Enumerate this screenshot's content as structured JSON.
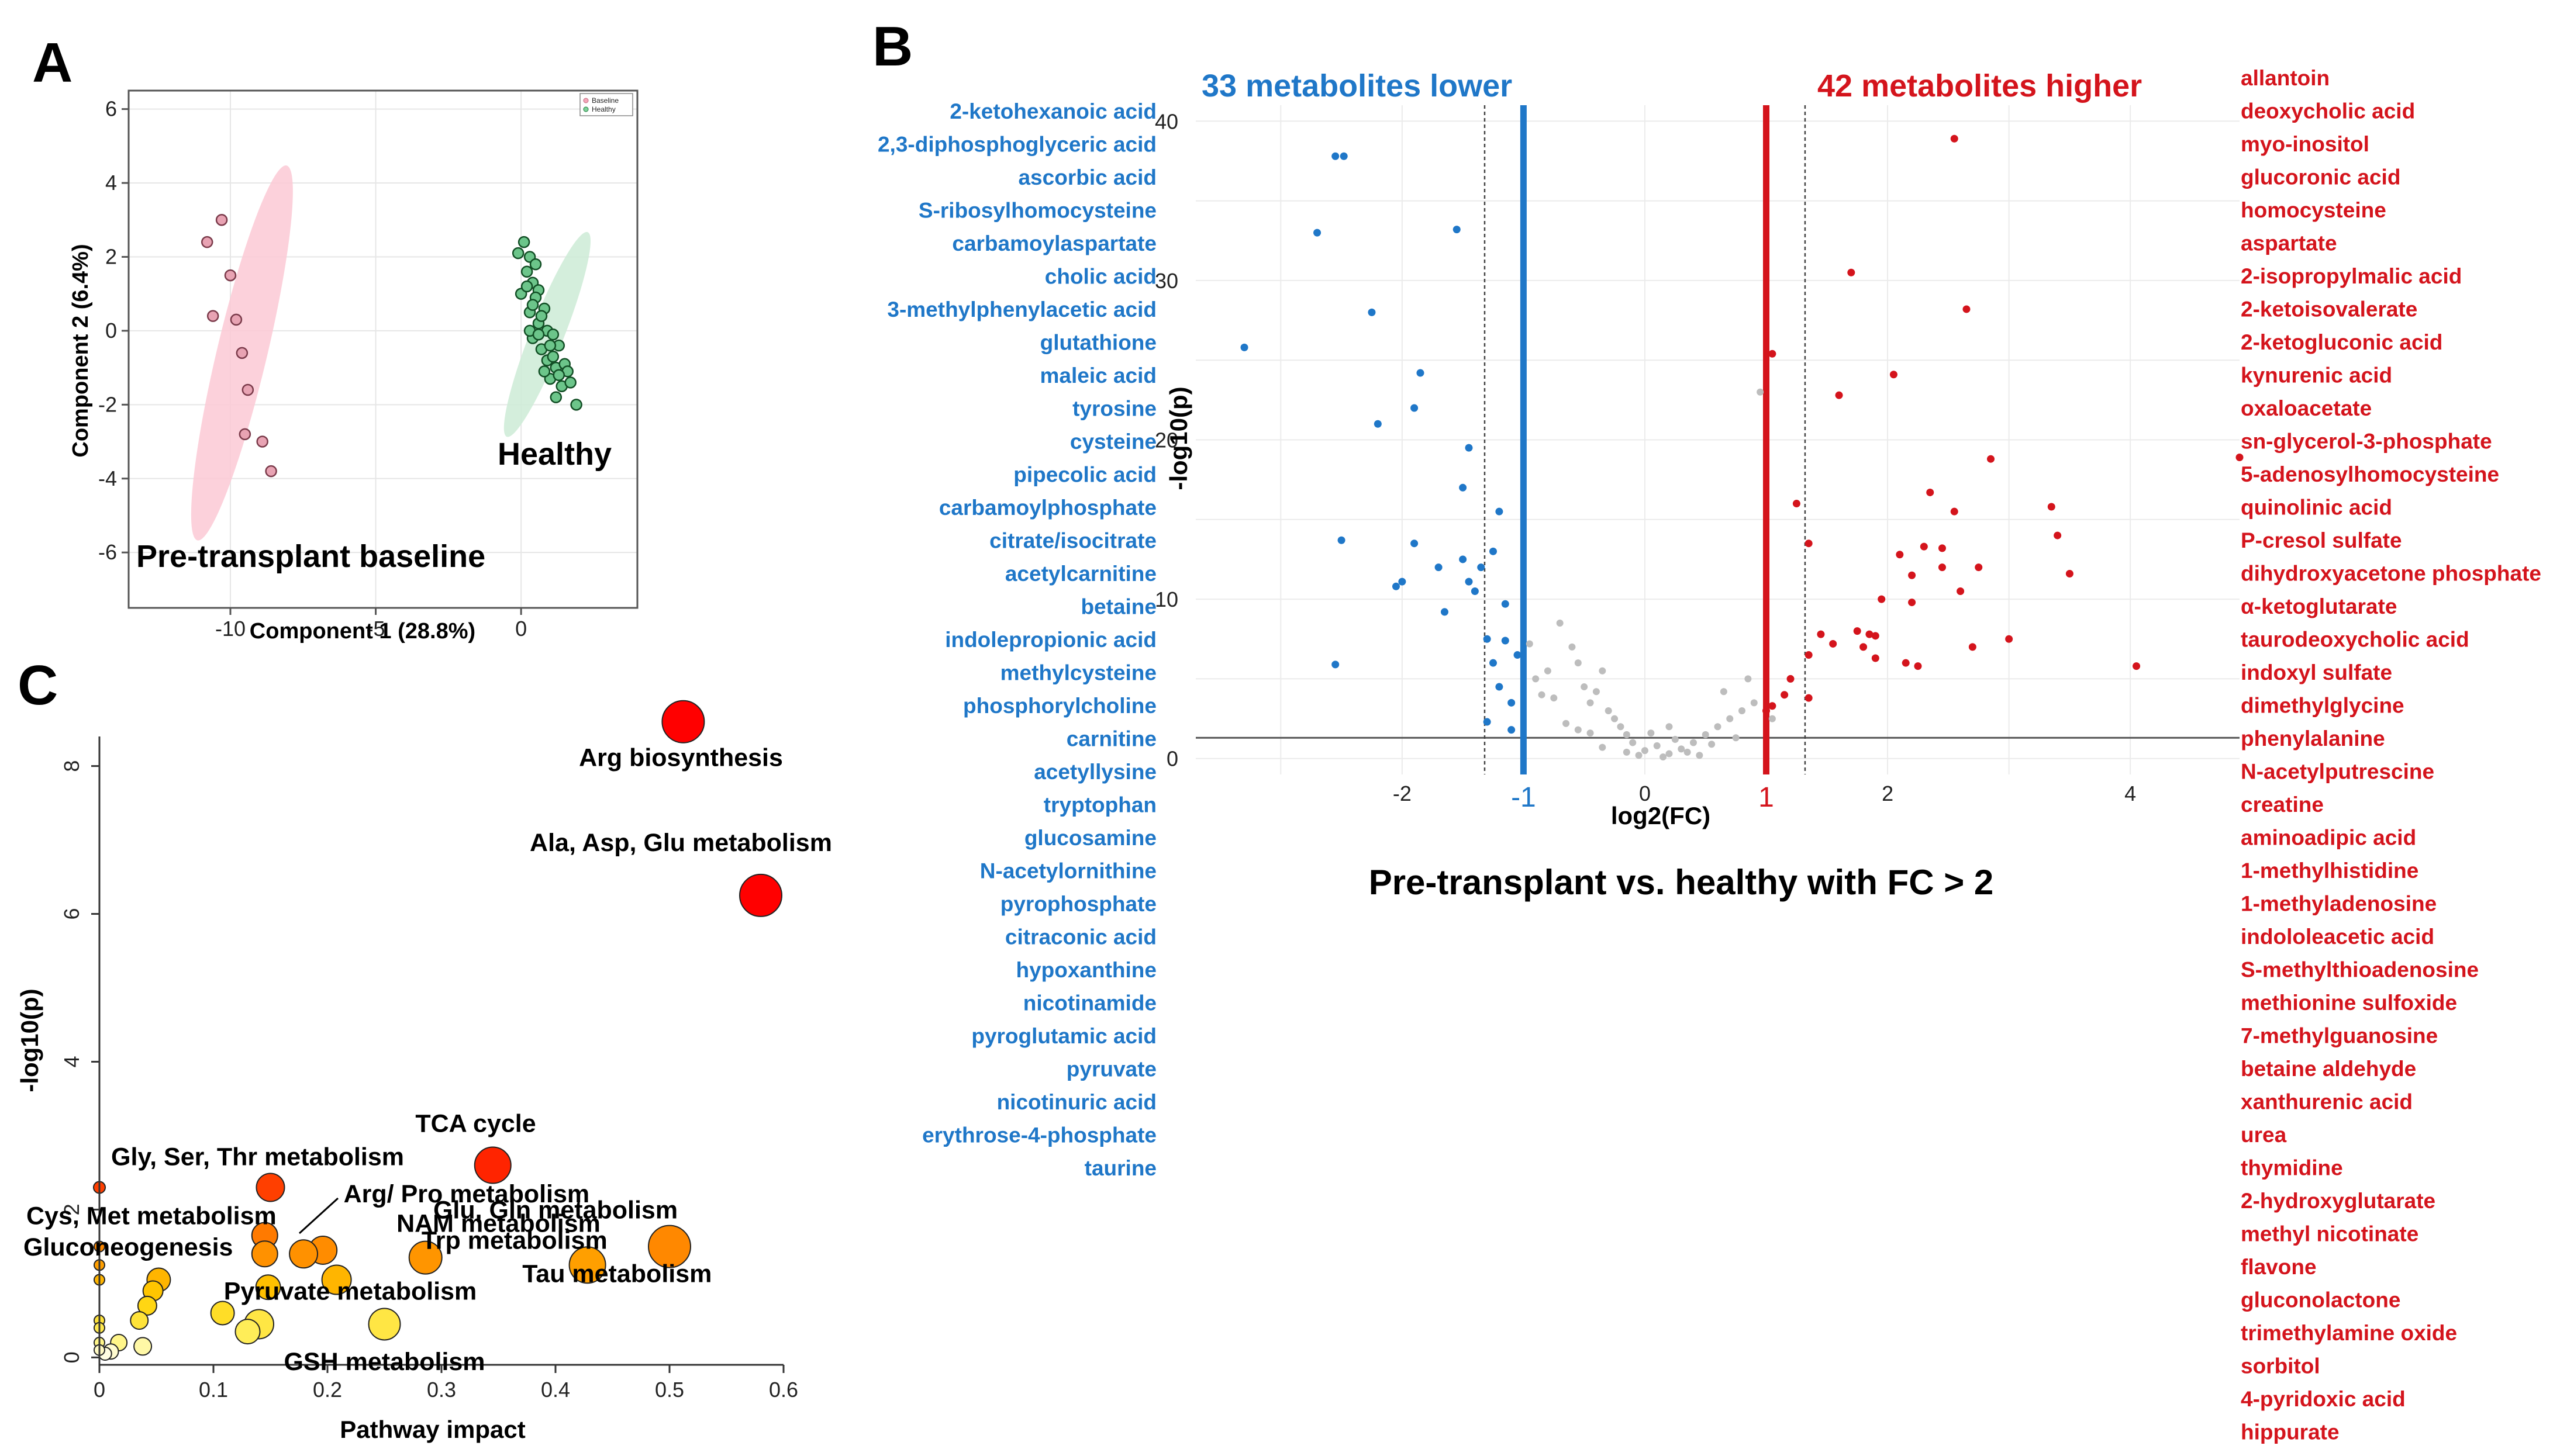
{
  "panels": {
    "A": "A",
    "B": "B",
    "C": "C"
  },
  "chart_data": [
    {
      "id": "A",
      "type": "scatter",
      "title": "",
      "xlabel": "Component 1 (28.8%)",
      "ylabel": "Component 2 (6.4%)",
      "xlim": [
        -13.5,
        4
      ],
      "ylim": [
        -7.5,
        6.5
      ],
      "xticks": [
        -10,
        -5,
        0
      ],
      "yticks": [
        -6,
        -4,
        -2,
        0,
        2,
        4,
        6
      ],
      "legend": {
        "position": "top-right",
        "entries": [
          "Baseline",
          "Healthy"
        ]
      },
      "colors": {
        "baseline": "#f4a6b8",
        "baseline_fill": "#fcc9d5",
        "healthy": "#1e7a3b",
        "healthy_fill": "#cdebd6"
      },
      "annotations": {
        "baseline": "Pre-transplant baseline",
        "healthy": "Healthy"
      },
      "series": [
        {
          "name": "Baseline",
          "points": [
            [
              -10.3,
              3.0
            ],
            [
              -10.8,
              2.4
            ],
            [
              -10.0,
              1.5
            ],
            [
              -10.6,
              0.4
            ],
            [
              -9.8,
              0.3
            ],
            [
              -9.6,
              -0.6
            ],
            [
              -9.4,
              -1.6
            ],
            [
              -9.5,
              -2.8
            ],
            [
              -8.9,
              -3.0
            ],
            [
              -8.6,
              -3.8
            ]
          ],
          "ellipse": {
            "center": [
              -9.6,
              -0.6
            ],
            "rx": 5.3,
            "ry": 0.85,
            "angle_deg": -73
          }
        },
        {
          "name": "Healthy",
          "points": [
            [
              -0.1,
              2.1
            ],
            [
              0.1,
              2.4
            ],
            [
              0.3,
              2.0
            ],
            [
              0.2,
              1.6
            ],
            [
              0.5,
              1.8
            ],
            [
              0.4,
              1.3
            ],
            [
              0.0,
              1.0
            ],
            [
              0.6,
              1.1
            ],
            [
              0.8,
              0.6
            ],
            [
              0.3,
              0.5
            ],
            [
              0.6,
              0.2
            ],
            [
              0.9,
              0.0
            ],
            [
              0.4,
              -0.2
            ],
            [
              1.1,
              -0.1
            ],
            [
              0.7,
              -0.5
            ],
            [
              1.3,
              -0.4
            ],
            [
              0.9,
              -0.8
            ],
            [
              1.2,
              -1.0
            ],
            [
              1.5,
              -0.9
            ],
            [
              1.0,
              -1.3
            ],
            [
              1.4,
              -1.5
            ],
            [
              1.7,
              -1.4
            ],
            [
              1.2,
              -1.8
            ],
            [
              1.9,
              -2.0
            ],
            [
              0.5,
              0.9
            ],
            [
              0.2,
              1.2
            ],
            [
              0.7,
              0.4
            ],
            [
              1.0,
              -0.4
            ],
            [
              1.6,
              -1.1
            ],
            [
              0.8,
              -1.1
            ],
            [
              0.3,
              0.0
            ],
            [
              1.3,
              -1.2
            ],
            [
              0.6,
              -0.1
            ],
            [
              1.1,
              -0.7
            ],
            [
              0.4,
              0.7
            ]
          ],
          "ellipse": {
            "center": [
              0.9,
              -0.1
            ],
            "rx": 3.1,
            "ry": 0.55,
            "angle_deg": -63
          }
        }
      ]
    },
    {
      "id": "B",
      "type": "scatter",
      "title": "Pre-transplant vs. healthy with FC > 2",
      "xlabel": "log2(FC)",
      "ylabel": "-log10(p)",
      "xlim": [
        -3.7,
        4.9
      ],
      "ylim": [
        -1,
        41
      ],
      "xticks": [
        -2,
        0,
        2,
        4
      ],
      "yticks": [
        0,
        10,
        20,
        30,
        40
      ],
      "thresholds": {
        "fc_lines": [
          -1,
          1
        ],
        "fc_labels": [
          "-1",
          "1"
        ],
        "dashed_x": [
          -1.32,
          1.32
        ],
        "p_line": 1.3
      },
      "colors": {
        "lower": "#1f77c8",
        "higher": "#d4141c",
        "ns": "#bdbdbd"
      },
      "header_lower": "33 metabolites lower",
      "header_higher": "42 metabolites higher",
      "lower_points": [
        [
          -3.3,
          25.8
        ],
        [
          -2.7,
          33.0
        ],
        [
          -2.55,
          37.8
        ],
        [
          -2.48,
          37.8
        ],
        [
          -2.25,
          28.0
        ],
        [
          -2.2,
          21.0
        ],
        [
          -1.9,
          22.0
        ],
        [
          -1.85,
          24.2
        ],
        [
          -1.55,
          33.2
        ],
        [
          -1.5,
          17.0
        ],
        [
          -1.45,
          19.5
        ],
        [
          -1.2,
          15.5
        ],
        [
          -2.5,
          13.7
        ],
        [
          -1.9,
          13.5
        ],
        [
          -1.7,
          12.0
        ],
        [
          -1.5,
          12.5
        ],
        [
          -1.35,
          12.0
        ],
        [
          -1.25,
          13.0
        ],
        [
          -2.05,
          10.8
        ],
        [
          -2.0,
          11.1
        ],
        [
          -1.65,
          9.2
        ],
        [
          -1.4,
          10.5
        ],
        [
          -1.15,
          9.7
        ],
        [
          -1.3,
          7.5
        ],
        [
          -1.15,
          7.4
        ],
        [
          -1.05,
          6.5
        ],
        [
          -1.25,
          6.0
        ],
        [
          -1.2,
          4.5
        ],
        [
          -1.1,
          3.5
        ],
        [
          -1.3,
          2.3
        ],
        [
          -1.1,
          1.8
        ],
        [
          -2.55,
          5.9
        ],
        [
          -1.45,
          11.1
        ]
      ],
      "higher_points": [
        [
          2.55,
          38.9
        ],
        [
          1.7,
          30.5
        ],
        [
          2.65,
          28.2
        ],
        [
          1.05,
          25.4
        ],
        [
          2.05,
          24.1
        ],
        [
          1.6,
          22.8
        ],
        [
          2.85,
          18.8
        ],
        [
          4.9,
          18.9
        ],
        [
          1.25,
          16.0
        ],
        [
          2.35,
          16.7
        ],
        [
          2.55,
          15.5
        ],
        [
          3.35,
          15.8
        ],
        [
          1.35,
          13.5
        ],
        [
          2.3,
          13.3
        ],
        [
          2.1,
          12.8
        ],
        [
          2.45,
          13.2
        ],
        [
          3.4,
          14.0
        ],
        [
          2.2,
          11.5
        ],
        [
          2.45,
          12.0
        ],
        [
          2.75,
          12.0
        ],
        [
          3.5,
          11.6
        ],
        [
          1.95,
          10.0
        ],
        [
          2.2,
          9.8
        ],
        [
          2.6,
          10.5
        ],
        [
          1.75,
          8.0
        ],
        [
          1.85,
          7.8
        ],
        [
          2.7,
          7.0
        ],
        [
          3.0,
          7.5
        ],
        [
          1.45,
          7.8
        ],
        [
          1.55,
          7.2
        ],
        [
          1.35,
          6.5
        ],
        [
          1.8,
          7.0
        ],
        [
          1.9,
          6.3
        ],
        [
          2.15,
          6.0
        ],
        [
          2.25,
          5.8
        ],
        [
          4.05,
          5.8
        ],
        [
          1.2,
          5.0
        ],
        [
          1.15,
          4.0
        ],
        [
          1.05,
          3.3
        ],
        [
          1.35,
          3.8
        ],
        [
          1.0,
          3.0
        ],
        [
          1.9,
          7.7
        ]
      ],
      "ns_points": [
        [
          -0.9,
          5.0
        ],
        [
          -0.8,
          5.5
        ],
        [
          -0.7,
          8.5
        ],
        [
          -0.6,
          7.0
        ],
        [
          -0.55,
          6.0
        ],
        [
          -0.5,
          4.5
        ],
        [
          -0.45,
          3.5
        ],
        [
          -0.4,
          4.2
        ],
        [
          -0.35,
          5.5
        ],
        [
          -0.3,
          3.0
        ],
        [
          -0.25,
          2.5
        ],
        [
          -0.2,
          2.0
        ],
        [
          -0.15,
          1.5
        ],
        [
          -0.1,
          1.0
        ],
        [
          0.0,
          0.5
        ],
        [
          0.1,
          0.8
        ],
        [
          0.2,
          0.3
        ],
        [
          0.3,
          0.6
        ],
        [
          0.4,
          1.0
        ],
        [
          0.5,
          1.5
        ],
        [
          0.6,
          2.0
        ],
        [
          0.7,
          2.5
        ],
        [
          0.8,
          3.0
        ],
        [
          0.9,
          3.5
        ],
        [
          0.95,
          23.0
        ],
        [
          -0.75,
          3.8
        ],
        [
          -0.65,
          2.2
        ],
        [
          -0.55,
          1.8
        ],
        [
          -0.05,
          0.2
        ],
        [
          0.15,
          0.1
        ],
        [
          0.35,
          0.4
        ],
        [
          0.55,
          0.9
        ],
        [
          0.75,
          1.3
        ],
        [
          0.45,
          0.2
        ],
        [
          -0.35,
          0.7
        ],
        [
          -0.95,
          7.2
        ],
        [
          0.85,
          5.0
        ],
        [
          0.25,
          1.2
        ],
        [
          -0.85,
          4.0
        ],
        [
          0.65,
          4.2
        ],
        [
          1.05,
          2.5
        ],
        [
          -0.45,
          1.6
        ],
        [
          -0.15,
          0.4
        ],
        [
          0.05,
          1.6
        ],
        [
          0.2,
          2.0
        ]
      ],
      "lower_names": [
        "2-ketohexanoic acid",
        "2,3-diphosphoglyceric acid",
        "ascorbic acid",
        "S-ribosylhomocysteine",
        "carbamoylaspartate",
        "cholic acid",
        "3-methylphenylacetic acid",
        "glutathione",
        "maleic acid",
        "tyrosine",
        "cysteine",
        "pipecolic acid",
        "carbamoylphosphate",
        "citrate/isocitrate",
        "acetylcarnitine",
        "betaine",
        "indolepropionic acid",
        "methylcysteine",
        "phosphorylcholine",
        "carnitine",
        "acetyllysine",
        "tryptophan",
        "glucosamine",
        "N-acetylornithine",
        "pyrophosphate",
        "citraconic acid",
        "hypoxanthine",
        "nicotinamide",
        "pyroglutamic acid",
        "pyruvate",
        "nicotinuric acid",
        "erythrose-4-phosphate",
        "taurine"
      ],
      "higher_names": [
        "allantoin",
        "deoxycholic acid",
        "myo-inositol",
        "glucoronic acid",
        "homocysteine",
        "aspartate",
        "2-isopropylmalic acid",
        "2-ketoisovalerate",
        "2-ketogluconic acid",
        "kynurenic acid",
        "oxaloacetate",
        "sn-glycerol-3-phosphate",
        "5-adenosylhomocysteine",
        "quinolinic acid",
        "P-cresol sulfate",
        "dihydroxyacetone phosphate",
        "α-ketoglutarate",
        "taurodeoxycholic acid",
        "indoxyl sulfate",
        "dimethylglycine",
        "phenylalanine",
        "N-acetylputrescine",
        "creatine",
        "aminoadipic acid",
        "1-methylhistidine",
        "1-methyladenosine",
        "indololeacetic acid",
        "S-methylthioadenosine",
        "methionine sulfoxide",
        "7-methylguanosine",
        "betaine aldehyde",
        "xanthurenic acid",
        "urea",
        "thymidine",
        "2-hydroxyglutarate",
        "methyl nicotinate",
        "flavone",
        "gluconolactone",
        "trimethylamine oxide",
        "sorbitol",
        "4-pyridoxic acid",
        "hippurate"
      ]
    },
    {
      "id": "C",
      "type": "scatter",
      "title": "",
      "xlabel": "Pathway impact",
      "ylabel": "-log10(p)",
      "xlim": [
        0,
        0.6
      ],
      "ylim": [
        -0.1,
        8.4
      ],
      "xticks": [
        0,
        0.1,
        0.2,
        0.3,
        0.4,
        0.5,
        0.6
      ],
      "xtick_labels": [
        "0",
        "0.1",
        "0.2",
        "0.3",
        "0.4",
        "0.5",
        "0.6"
      ],
      "yticks": [
        0,
        2,
        4,
        6,
        8
      ],
      "ytick_labels": [
        "0",
        "2",
        "4",
        "6",
        "8"
      ],
      "color_scale": [
        "#ffffff",
        "#fff36b",
        "#ffd000",
        "#ff9a00",
        "#ff5a00",
        "#ff0000"
      ],
      "points": [
        {
          "x": 0.512,
          "y": 8.6,
          "size": 36
        },
        {
          "x": 0.58,
          "y": 6.25,
          "size": 36
        },
        {
          "x": 0.345,
          "y": 2.6,
          "size": 31
        },
        {
          "x": 0.15,
          "y": 2.3,
          "size": 24
        },
        {
          "x": 0.5,
          "y": 1.5,
          "size": 36
        },
        {
          "x": 0.428,
          "y": 1.25,
          "size": 31
        },
        {
          "x": 0.286,
          "y": 1.35,
          "size": 28
        },
        {
          "x": 0.196,
          "y": 1.45,
          "size": 24
        },
        {
          "x": 0.179,
          "y": 1.4,
          "size": 24
        },
        {
          "x": 0.145,
          "y": 1.65,
          "size": 22
        },
        {
          "x": 0.145,
          "y": 1.4,
          "size": 22
        },
        {
          "x": 0.208,
          "y": 1.05,
          "size": 25
        },
        {
          "x": 0.148,
          "y": 0.95,
          "size": 21
        },
        {
          "x": 0.25,
          "y": 0.45,
          "size": 27
        },
        {
          "x": 0.14,
          "y": 0.45,
          "size": 25
        },
        {
          "x": 0.13,
          "y": 0.35,
          "size": 21
        },
        {
          "x": 0.108,
          "y": 0.6,
          "size": 20
        },
        {
          "x": 0.052,
          "y": 1.05,
          "size": 20
        },
        {
          "x": 0.047,
          "y": 0.9,
          "size": 17
        },
        {
          "x": 0.042,
          "y": 0.7,
          "size": 16
        },
        {
          "x": 0.035,
          "y": 0.5,
          "size": 15
        },
        {
          "x": 0.038,
          "y": 0.15,
          "size": 15
        },
        {
          "x": 0.017,
          "y": 0.2,
          "size": 14
        },
        {
          "x": 0.01,
          "y": 0.08,
          "size": 13
        },
        {
          "x": 0.005,
          "y": 0.05,
          "size": 11
        },
        {
          "x": 0.0,
          "y": 2.3,
          "size": 10
        },
        {
          "x": 0.0,
          "y": 1.5,
          "size": 9
        },
        {
          "x": 0.0,
          "y": 1.25,
          "size": 9
        },
        {
          "x": 0.0,
          "y": 1.05,
          "size": 9
        },
        {
          "x": 0.0,
          "y": 0.5,
          "size": 9
        },
        {
          "x": 0.0,
          "y": 0.4,
          "size": 9
        },
        {
          "x": 0.0,
          "y": 0.2,
          "size": 9
        },
        {
          "x": 0.0,
          "y": 0.1,
          "size": 9
        }
      ],
      "annotations": [
        {
          "label": "Arg biosynthesis",
          "x": 0.51,
          "y": 8.0
        },
        {
          "label": "Ala, Asp, Glu metabolism",
          "x": 0.51,
          "y": 6.85
        },
        {
          "label": "TCA cycle",
          "x": 0.33,
          "y": 3.05
        },
        {
          "label": "Gly, Ser, Thr metabolism",
          "x": 0.13,
          "y": 2.6
        },
        {
          "label": "Arg/ Pro metabolism",
          "x": 0.322,
          "y": 2.1
        },
        {
          "label": "Cys, Met metabolism",
          "x": 0.038,
          "y": 1.8
        },
        {
          "label": "NAM metabolism",
          "x": 0.35,
          "y": 1.7
        },
        {
          "label": "Glu, Gln metabolism",
          "x": 0.4,
          "y": 1.88
        },
        {
          "label": "Gluconeogenesis",
          "x": 0.013,
          "y": 1.38
        },
        {
          "label": "Trp metabolism",
          "x": 0.364,
          "y": 1.47
        },
        {
          "label": "Tau metabolism",
          "x": 0.454,
          "y": 1.02
        },
        {
          "label": "Pyruvate metabolism",
          "x": 0.22,
          "y": 0.78
        },
        {
          "label": "GSH metabolism",
          "x": 0.25,
          "y": -0.17
        }
      ]
    }
  ]
}
